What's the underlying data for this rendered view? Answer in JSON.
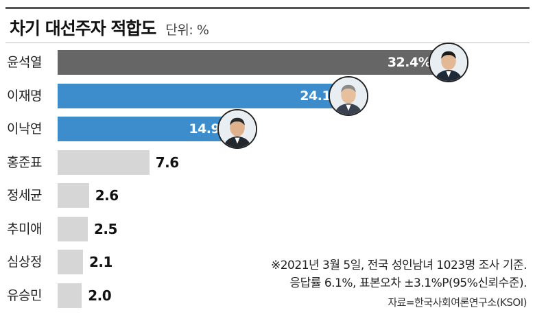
{
  "header": {
    "title": "차기 대선주자 적합도",
    "unit": "단위: %"
  },
  "chart_data": {
    "type": "bar",
    "orientation": "horizontal",
    "title": "차기 대선주자 적합도",
    "unit": "단위: %",
    "categories": [
      "윤석열",
      "이재명",
      "이낙연",
      "홍준표",
      "정세균",
      "추미애",
      "심상정",
      "유승민"
    ],
    "values": [
      32.4,
      24.1,
      14.9,
      7.6,
      2.6,
      2.5,
      2.1,
      2.0
    ],
    "value_labels": [
      "32.4%",
      "24.1",
      "14.9",
      "7.6",
      "2.6",
      "2.5",
      "2.1",
      "2.0"
    ],
    "colors": [
      "#666666",
      "#3d8ccc",
      "#3d8ccc",
      "#d6d6d6",
      "#d6d6d6",
      "#d6d6d6",
      "#d6d6d6",
      "#d6d6d6"
    ],
    "xlim": [
      0,
      40
    ],
    "grid": false,
    "portraits": [
      "윤석열",
      "이재명",
      "이낙연"
    ]
  },
  "notes": {
    "line1": "※2021년 3월 5일, 전국 성인남녀 1023명 조사 기준.",
    "line2": "응답률 6.1%,  표본오차 ±3.1%P(95%신뢰수준).",
    "source": "자료=한국사회여론연구소(KSOI)"
  }
}
